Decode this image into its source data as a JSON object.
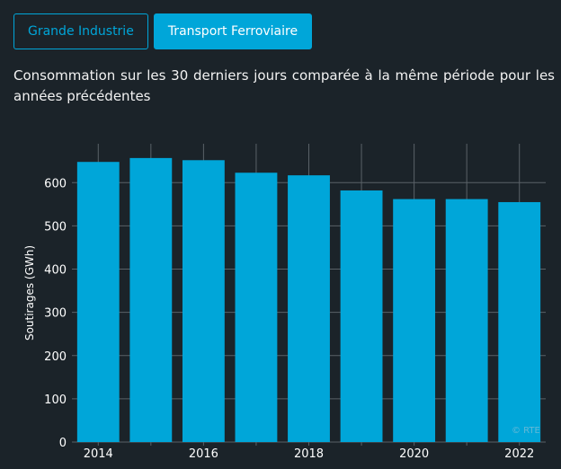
{
  "tabs": [
    {
      "label": "Grande Industrie",
      "active": false
    },
    {
      "label": "Transport Ferroviaire",
      "active": true
    }
  ],
  "description": "Consommation sur les 30 derniers jours comparée à la même période pour les années précédentes",
  "watermark": "© RTE",
  "colors": {
    "bar": "#00a6d9",
    "background": "#1b2329",
    "grid": "#5a6268"
  },
  "chart_data": {
    "type": "bar",
    "categories": [
      "2014",
      "2015",
      "2016",
      "2017",
      "2018",
      "2019",
      "2020",
      "2021",
      "2022"
    ],
    "values": [
      648,
      657,
      652,
      623,
      617,
      582,
      562,
      562,
      555
    ],
    "x_tick_labels": [
      "2014",
      "2016",
      "2018",
      "2020",
      "2022"
    ],
    "ylabel": "Soutirages (GWh)",
    "yticks": [
      0,
      100,
      200,
      300,
      400,
      500,
      600
    ],
    "ylim": [
      0,
      690
    ],
    "grid": true
  }
}
